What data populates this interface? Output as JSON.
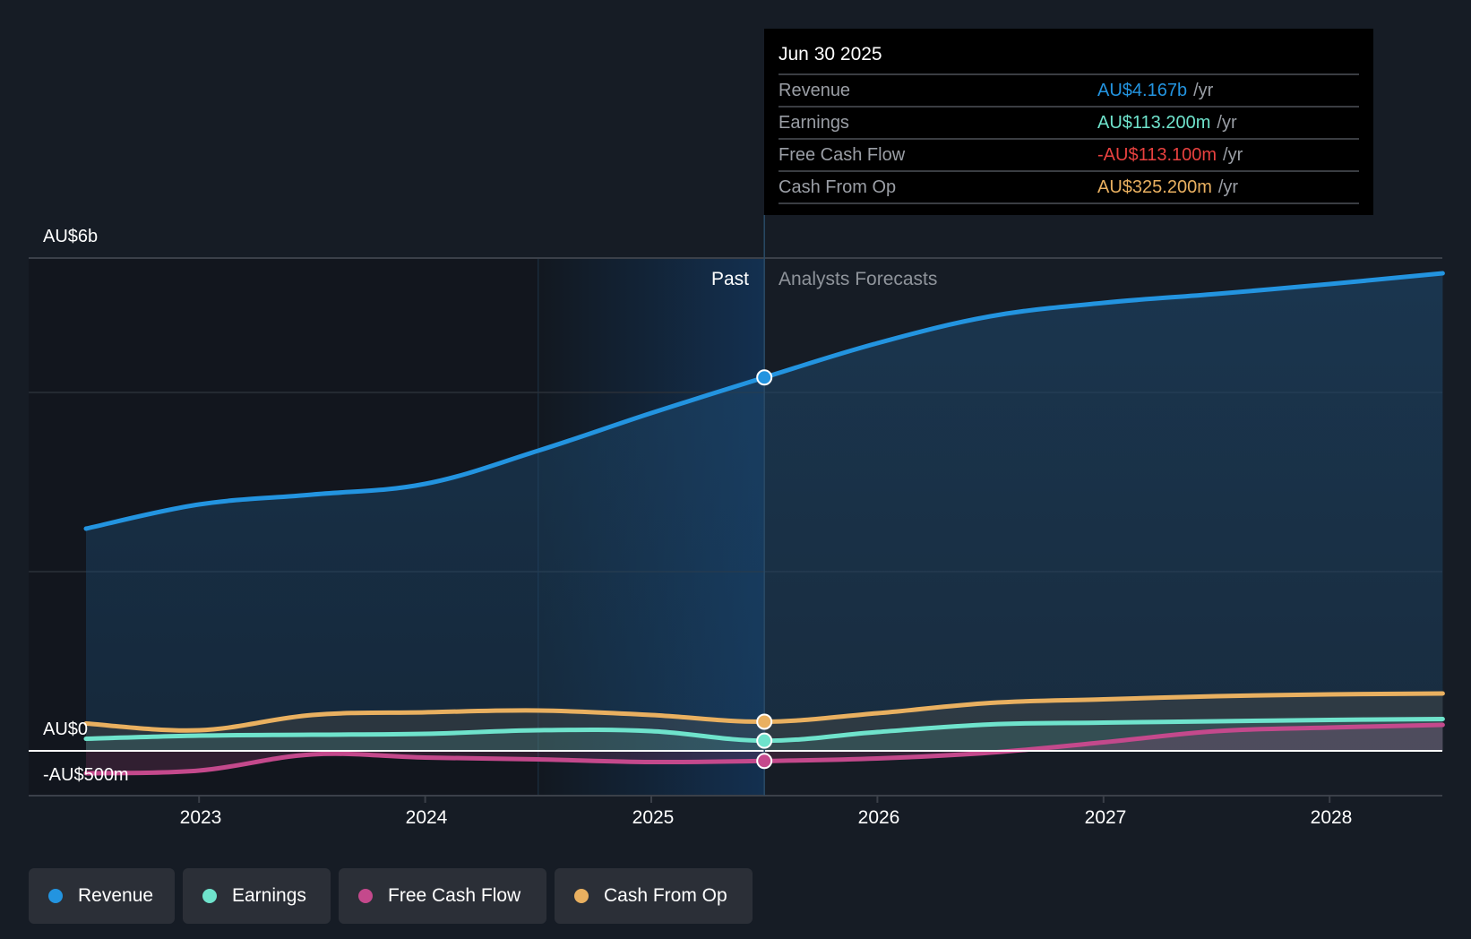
{
  "tooltip": {
    "date": "Jun 30 2025",
    "rows": [
      {
        "label": "Revenue",
        "value": "AU$4.167b",
        "unit": "/yr",
        "color": "#2394e0"
      },
      {
        "label": "Earnings",
        "value": "AU$113.200m",
        "unit": "/yr",
        "color": "#6fe3cc"
      },
      {
        "label": "Free Cash Flow",
        "value": "-AU$113.100m",
        "unit": "/yr",
        "color": "#e8413f"
      },
      {
        "label": "Cash From Op",
        "value": "AU$325.200m",
        "unit": "/yr",
        "color": "#e9b060"
      }
    ]
  },
  "labels": {
    "past": "Past",
    "forecast": "Analysts Forecasts"
  },
  "legend": [
    {
      "label": "Revenue",
      "color": "#2394e0"
    },
    {
      "label": "Earnings",
      "color": "#6fe3cc"
    },
    {
      "label": "Free Cash Flow",
      "color": "#c4498c"
    },
    {
      "label": "Cash From Op",
      "color": "#e9b060"
    }
  ],
  "chart_data": {
    "type": "line",
    "title": "",
    "xlabel": "",
    "ylabel": "",
    "unit": "AU$ millions",
    "x_ticks": [
      "2023",
      "2024",
      "2025",
      "2026",
      "2027",
      "2028"
    ],
    "y_tick_labels": [
      "AU$6b",
      "AU$0",
      "-AU$500m"
    ],
    "ylim": [
      -500,
      5500
    ],
    "xlim": [
      2022.5,
      2028.5
    ],
    "past_forecast_split": 2025.5,
    "highlight_start": 2024.5,
    "grid": true,
    "legend_position": "bottom-left",
    "x": [
      2022.5,
      2023.0,
      2023.5,
      2024.0,
      2024.5,
      2025.0,
      2025.5,
      2026.0,
      2026.5,
      2027.0,
      2027.5,
      2028.0,
      2028.5
    ],
    "series": [
      {
        "name": "Revenue",
        "color": "#2394e0",
        "values": [
          2480,
          2750,
          2860,
          2980,
          3350,
          3770,
          4167,
          4550,
          4850,
          5000,
          5100,
          5210,
          5330
        ]
      },
      {
        "name": "Earnings",
        "color": "#6fe3cc",
        "values": [
          135,
          170,
          180,
          190,
          230,
          220,
          113.2,
          210,
          295,
          315,
          330,
          345,
          355
        ]
      },
      {
        "name": "Free Cash Flow",
        "color": "#c4498c",
        "values": [
          -250,
          -220,
          -40,
          -75,
          -95,
          -125,
          -113.1,
          -85,
          -20,
          95,
          220,
          260,
          290
        ]
      },
      {
        "name": "Cash From Op",
        "color": "#e9b060",
        "values": [
          305,
          230,
          400,
          430,
          450,
          400,
          325.2,
          420,
          535,
          575,
          610,
          630,
          640
        ]
      }
    ]
  }
}
